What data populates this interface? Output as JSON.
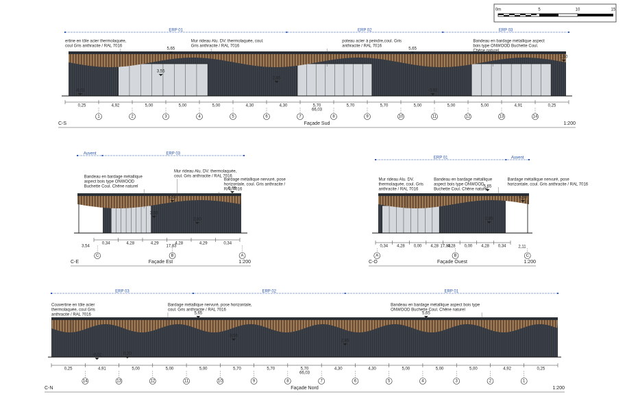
{
  "scale_bar": {
    "labels": [
      "0m",
      "5",
      "10",
      "15"
    ]
  },
  "sud": {
    "code": "C-S",
    "title": "Façade Sud",
    "scale": "1:200",
    "zones": [
      "ERP 01",
      "ERP 02",
      "ERP 03"
    ],
    "notes": [
      [
        "ertine en tôle acier thermolaquée,",
        "coul Gris anthracite / RAL 7016"
      ],
      [
        "Mur rideau Alu. DV. thermolaquée, coul.",
        "Gris anthracite / RAL 7016"
      ],
      [
        "poteau acier à peindre,coul. Gris",
        "anthracite / RAL 7016"
      ],
      [
        "Bandeau en bardage métallique aspect",
        "bois type ONWOOD Buchette Coul.",
        "Chêne naturel"
      ]
    ],
    "levels": [
      "5,65",
      "3,55",
      "2,85",
      "-0,02",
      "-0,02",
      "5,65",
      "1,50"
    ],
    "dims": [
      "0,25",
      "4,92",
      "5,00",
      "5,00",
      "5,00",
      "4,30",
      "4,30",
      "5,70",
      "5,70",
      "5,70",
      "5,00",
      "5,00",
      "5,00",
      "4,91",
      "0,25"
    ],
    "total": "66,03",
    "axes": [
      "1",
      "2",
      "3",
      "4",
      "5",
      "6",
      "7",
      "8",
      "9",
      "10",
      "11",
      "12",
      "13",
      "14"
    ]
  },
  "est": {
    "code": "C-E",
    "title": "Façade Est",
    "scale": "1:200",
    "zones": [
      "Auvent",
      "ERP 03"
    ],
    "notes": [
      [
        "Bandeau en bardage métallique",
        "aspect bois type ONWOOD",
        "Buchette Coul. Chêne naturel"
      ],
      [
        "Mur rideau Alu. DV. thermolaquée,",
        "coul. Gris anthracite / RAL 7016"
      ],
      [
        "Bardage métallique nervuré, pose",
        "horizontale, coul. Gris anthracite /",
        "RAL 7016"
      ]
    ],
    "levels": [
      "5,65",
      "6,50",
      "3,55",
      "2,80"
    ],
    "dims": [
      "0,34",
      "4,28",
      "4,29",
      "4,28",
      "4,29",
      "0,34"
    ],
    "other_dims": [
      "3,54",
      "17,83"
    ],
    "axes": [
      "C",
      "B",
      "A"
    ]
  },
  "ouest": {
    "code": "C-O",
    "title": "Façade Ouest",
    "scale": "1:200",
    "zones": [
      "ERP 01",
      "Auvent"
    ],
    "notes": [
      [
        "Mur rideau Alu. DV.",
        "thermolaquée, coul. Gris",
        "anthracite / RAL 7016"
      ],
      [
        "Bandeau en bardage métallique",
        "aspect bois type ONWOOD",
        "Buchette Coul. Chêne naturel"
      ],
      [
        "Bardage métallique nervuré, pose",
        "horizontale, coul. Gris anthracite / RAL 7016"
      ]
    ],
    "levels": [
      "5,65",
      "6,50",
      "2,85"
    ],
    "dims": [
      "0,34",
      "4,28",
      "0,00",
      "4,28",
      "4,28",
      "0,00",
      "4,28",
      "0,34"
    ],
    "other_dims": [
      "17,83",
      "2,11"
    ],
    "axes": [
      "A",
      "B",
      "C"
    ]
  },
  "nord": {
    "code": "C-N",
    "title": "Façade Nord",
    "scale": "1:200",
    "zones": [
      "ERP 03",
      "ERP 02",
      "ERP 01"
    ],
    "notes": [
      [
        "Couvertine en tôle acier",
        "thermolaquée, coul Gris",
        "anthracite / RAL 7016"
      ],
      [
        "Bardage métallique nervuré, pose horizontale,",
        "coul. Gris anthracite / RAL 7016"
      ],
      [
        "Bandeau en bardage métallique aspect bois type",
        "ONWOOD Buchette Coul. Chêne naturel"
      ]
    ],
    "levels": [
      "5,65",
      "3,55",
      "2,85",
      "-0,02",
      "0,20",
      "5,65"
    ],
    "dims": [
      "0,25",
      "4,91",
      "5,00",
      "5,00",
      "5,00",
      "5,70",
      "5,70",
      "5,70",
      "4,30",
      "4,30",
      "5,00",
      "5,00",
      "5,00",
      "4,92",
      "0,25"
    ],
    "total": "66,03",
    "axes": [
      "14",
      "13",
      "12",
      "11",
      "10",
      "9",
      "8",
      "7",
      "6",
      "5",
      "4",
      "3",
      "2",
      "1"
    ]
  }
}
